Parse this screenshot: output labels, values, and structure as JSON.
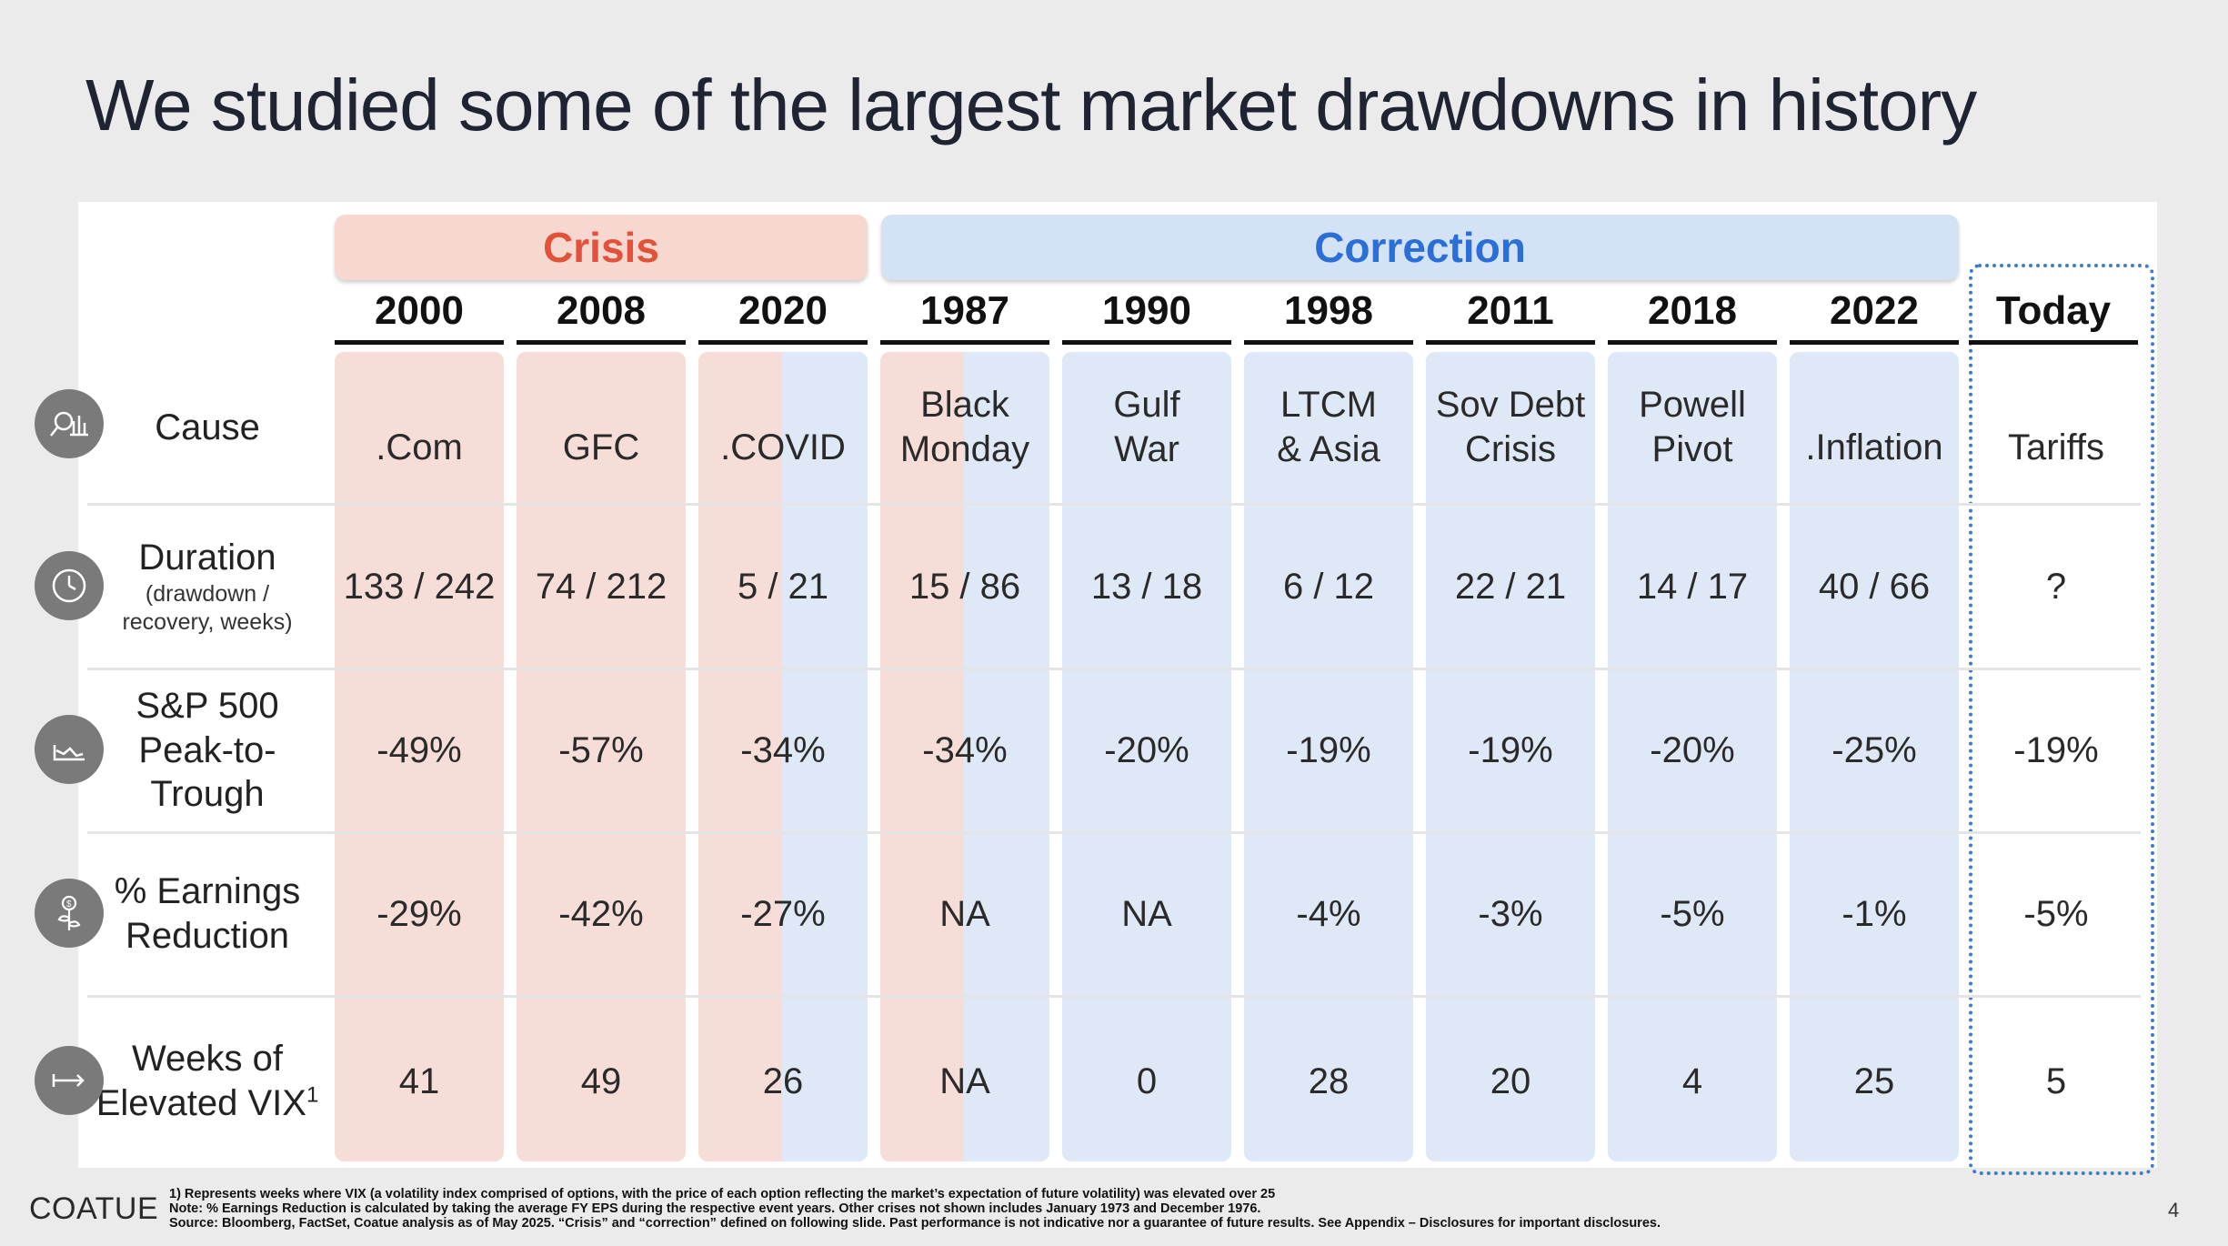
{
  "title": "We studied some of the largest market drawdowns in history",
  "groups": {
    "crisis": "Crisis",
    "correction": "Correction"
  },
  "years": [
    "2000",
    "2008",
    "2020",
    "1987",
    "1990",
    "1998",
    "2011",
    "2018",
    "2022",
    "Today"
  ],
  "row_labels": {
    "cause": "Cause",
    "duration": "Duration",
    "duration_sub1": "(drawdown /",
    "duration_sub2": "recovery, weeks)",
    "sp_line1": "S&P 500",
    "sp_line2": "Peak-to-",
    "sp_line3": "Trough",
    "earn_line1": "% Earnings",
    "earn_line2": "Reduction",
    "vix_line1": "Weeks of",
    "vix_line2": "Elevated VIX",
    "vix_sup": "1"
  },
  "causes": [
    [
      ".Com"
    ],
    [
      "GFC"
    ],
    [
      ".COVID"
    ],
    [
      "Black",
      "Monday"
    ],
    [
      "Gulf",
      "War"
    ],
    [
      "LTCM",
      "& Asia"
    ],
    [
      "Sov Debt",
      "Crisis"
    ],
    [
      "Powell",
      "Pivot"
    ],
    [
      ".Inflation"
    ],
    [
      "Tariffs"
    ]
  ],
  "duration": [
    "133 / 242",
    "74 / 212",
    "5 / 21",
    "15 / 86",
    "13 / 18",
    "6 / 12",
    "22 / 21",
    "14 / 17",
    "40 / 66",
    "?"
  ],
  "peak_to_trough": [
    "-49%",
    "-57%",
    "-34%",
    "-34%",
    "-20%",
    "-19%",
    "-19%",
    "-20%",
    "-25%",
    "-19%"
  ],
  "earnings_reduction": [
    "-29%",
    "-42%",
    "-27%",
    "NA",
    "NA",
    "-4%",
    "-3%",
    "-5%",
    "-1%",
    "-5%"
  ],
  "weeks_vix": [
    "41",
    "49",
    "26",
    "NA",
    "0",
    "28",
    "20",
    "4",
    "25",
    "5"
  ],
  "icons": [
    "chart-search-icon",
    "clock-icon",
    "line-chart-icon",
    "dollar-plant-icon",
    "arrow-right-icon"
  ],
  "footer": {
    "logo": "COATUE",
    "note1": "1) Represents weeks where VIX (a volatility index comprised of options, with the price of each option reflecting the market’s expectation of future volatility) was elevated over 25",
    "note2": "Note: % Earnings Reduction is calculated by taking the average FY EPS during the respective event years. Other crises not shown includes January 1973 and December 1976.",
    "note3": "Source: Bloomberg, FactSet, Coatue analysis as of May 2025. “Crisis” and “correction” defined on following slide. Past performance is not indicative nor a guarantee of future results. See Appendix – Disclosures for important disclosures.",
    "page": "4"
  },
  "colors": {
    "crisis_bg": "#f7ddd8",
    "correction_bg": "#dfe8f6",
    "crisis_text": "#e0533a",
    "correction_text": "#2b6fd6"
  }
}
